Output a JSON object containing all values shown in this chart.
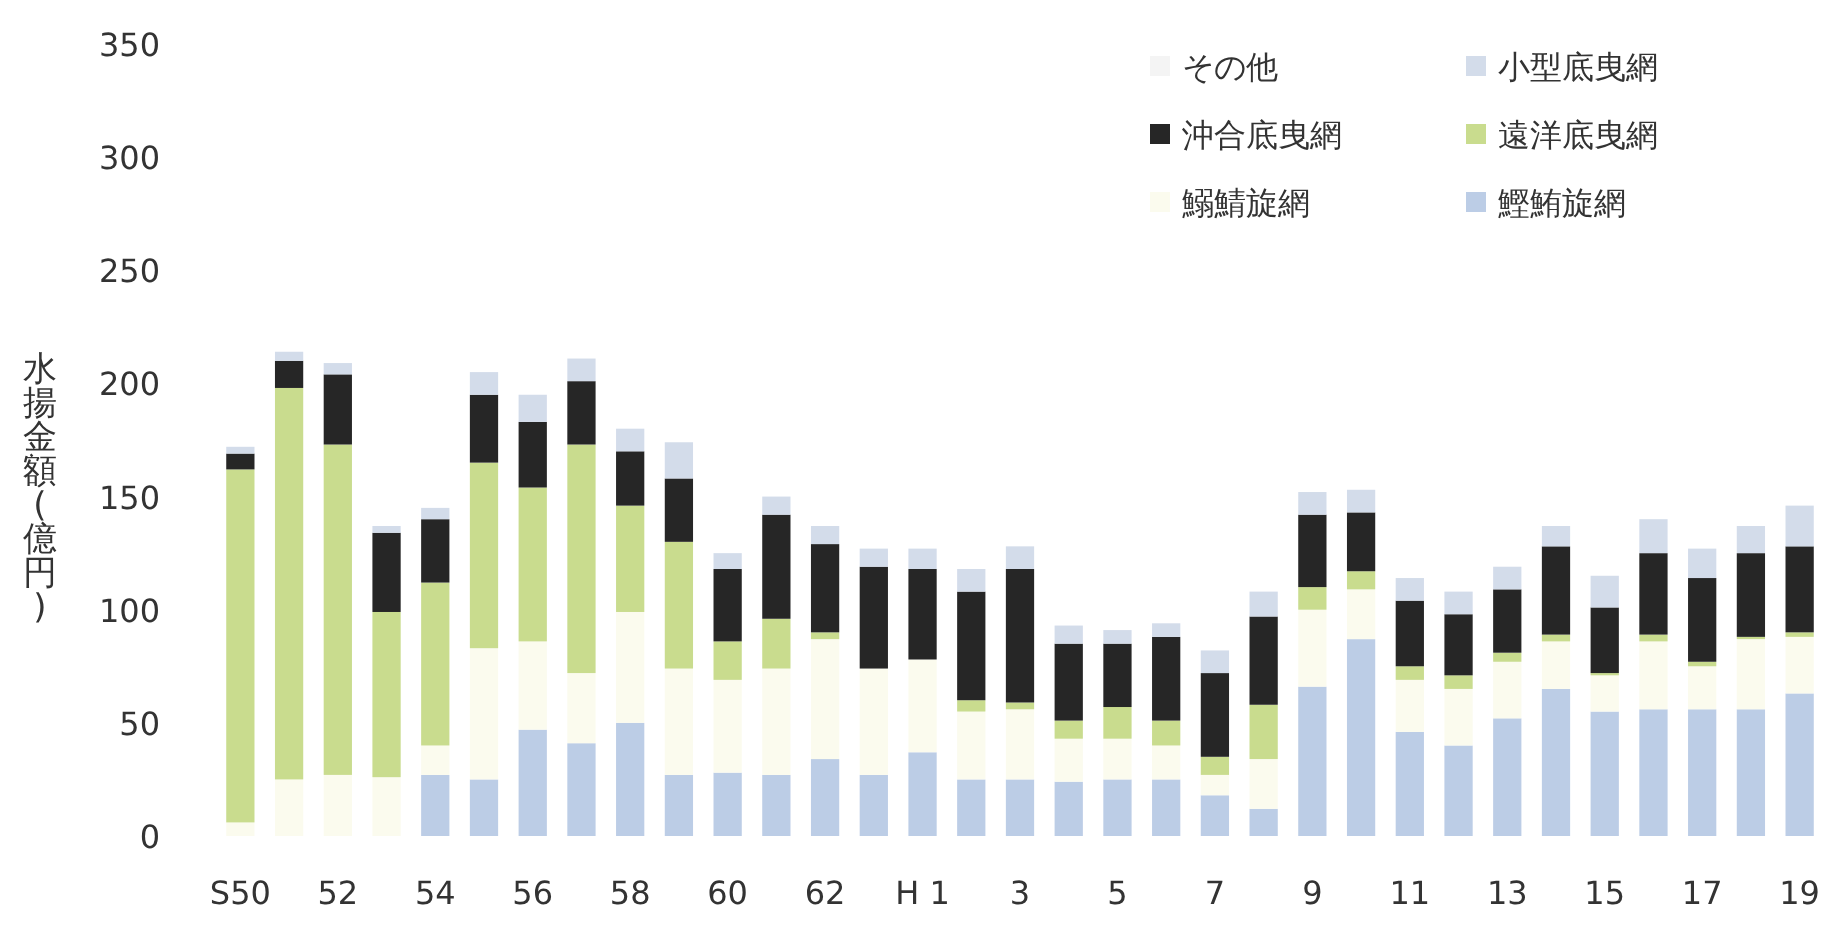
{
  "chart_data": {
    "type": "bar",
    "stacked": true,
    "ylabel": "水揚金額(億円)",
    "categories": [
      "S50",
      null,
      "52",
      null,
      "54",
      null,
      "56",
      null,
      "58",
      null,
      "60",
      null,
      "62",
      null,
      "H 1",
      null,
      "3",
      null,
      "5",
      null,
      "7",
      null,
      "9",
      null,
      "11",
      null,
      "13",
      null,
      "15",
      null,
      "17",
      null,
      "19"
    ],
    "ylim": [
      0,
      350
    ],
    "yticks": [
      0,
      50,
      100,
      150,
      200,
      250,
      300,
      350
    ],
    "legend": "top right",
    "series": [
      {
        "name": "鰹鮪旋網",
        "color": "#bccde6",
        "values": [
          0,
          0,
          0,
          0,
          27,
          25,
          47,
          41,
          50,
          27,
          28,
          27,
          34,
          27,
          37,
          25,
          25,
          24,
          25,
          25,
          18,
          12,
          66,
          87,
          46,
          40,
          52,
          65,
          55,
          56,
          56,
          56,
          63
        ]
      },
      {
        "name": "鰯鯖旋網",
        "color": "#fbfbee",
        "values": [
          6,
          25,
          27,
          26,
          13,
          58,
          39,
          31,
          49,
          47,
          41,
          47,
          53,
          47,
          41,
          30,
          31,
          19,
          18,
          15,
          9,
          22,
          34,
          22,
          23,
          25,
          25,
          21,
          16,
          30,
          19,
          31,
          25
        ]
      },
      {
        "name": "遠洋底曳網",
        "color": "#c9dc8e",
        "values": [
          156,
          173,
          146,
          73,
          72,
          82,
          68,
          101,
          47,
          56,
          17,
          22,
          3,
          0,
          0,
          5,
          3,
          8,
          14,
          11,
          8,
          24,
          10,
          8,
          6,
          6,
          4,
          3,
          1,
          3,
          2,
          1,
          2
        ]
      },
      {
        "name": "沖合底曳網",
        "color": "#262626",
        "values": [
          7,
          12,
          31,
          35,
          28,
          30,
          29,
          28,
          24,
          28,
          32,
          46,
          39,
          45,
          40,
          48,
          59,
          34,
          28,
          37,
          37,
          39,
          32,
          26,
          29,
          27,
          28,
          39,
          29,
          36,
          37,
          37,
          38
        ]
      },
      {
        "name": "小型底曳網",
        "color": "#d3dcea",
        "values": [
          3,
          4,
          5,
          3,
          5,
          10,
          12,
          10,
          10,
          16,
          7,
          8,
          8,
          8,
          9,
          10,
          10,
          8,
          6,
          6,
          10,
          11,
          10,
          10,
          10,
          10,
          10,
          9,
          14,
          15,
          13,
          12,
          18
        ]
      },
      {
        "name": "その他",
        "color": "#f4f4f4",
        "values": [
          0,
          0,
          0,
          0,
          0,
          0,
          0,
          0,
          0,
          0,
          0,
          0,
          0,
          0,
          0,
          0,
          0,
          0,
          0,
          0,
          0,
          0,
          0,
          0,
          0,
          0,
          0,
          0,
          0,
          0,
          0,
          0,
          0
        ]
      }
    ]
  }
}
